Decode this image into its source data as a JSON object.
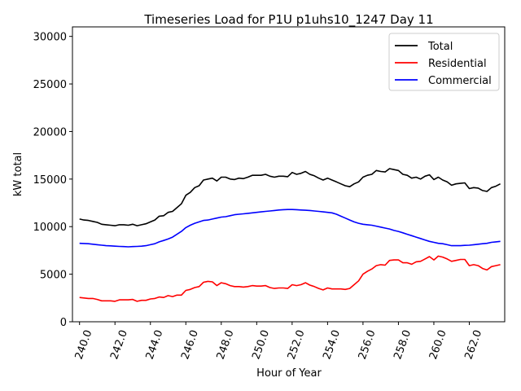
{
  "chart_data": {
    "type": "line",
    "title": "Timeseries Load for P1U p1uhs10_1247  Day 11",
    "xlabel": "Hour of Year",
    "ylabel": "kW total",
    "xlim": [
      239.6,
      264.0
    ],
    "ylim": [
      0,
      31000
    ],
    "xticks": [
      240.0,
      242.0,
      244.0,
      246.0,
      248.0,
      250.0,
      252.0,
      254.0,
      256.0,
      258.0,
      260.0,
      262.0
    ],
    "xtick_labels": [
      "240.0",
      "242.0",
      "244.0",
      "246.0",
      "248.0",
      "250.0",
      "252.0",
      "254.0",
      "256.0",
      "258.0",
      "260.0",
      "262.0"
    ],
    "yticks": [
      0,
      5000,
      10000,
      15000,
      20000,
      25000,
      30000
    ],
    "ytick_labels": [
      "0",
      "5000",
      "10000",
      "15000",
      "20000",
      "25000",
      "30000"
    ],
    "legend_position": "top-right",
    "x": [
      240.0,
      240.25,
      240.5,
      240.75,
      241.0,
      241.25,
      241.5,
      241.75,
      242.0,
      242.25,
      242.5,
      242.75,
      243.0,
      243.25,
      243.5,
      243.75,
      244.0,
      244.25,
      244.5,
      244.75,
      245.0,
      245.25,
      245.5,
      245.75,
      246.0,
      246.25,
      246.5,
      246.75,
      247.0,
      247.25,
      247.5,
      247.75,
      248.0,
      248.25,
      248.5,
      248.75,
      249.0,
      249.25,
      249.5,
      249.75,
      250.0,
      250.25,
      250.5,
      250.75,
      251.0,
      251.25,
      251.5,
      251.75,
      252.0,
      252.25,
      252.5,
      252.75,
      253.0,
      253.25,
      253.5,
      253.75,
      254.0,
      254.25,
      254.5,
      254.75,
      255.0,
      255.25,
      255.5,
      255.75,
      256.0,
      256.25,
      256.5,
      256.75,
      257.0,
      257.25,
      257.5,
      257.75,
      258.0,
      258.25,
      258.5,
      258.75,
      259.0,
      259.25,
      259.5,
      259.75,
      260.0,
      260.25,
      260.5,
      260.75,
      261.0,
      261.25,
      261.5,
      261.75,
      262.0,
      262.25,
      262.5,
      262.75,
      263.0,
      263.25,
      263.5,
      263.75
    ],
    "series": [
      {
        "name": "Total",
        "color": "#000000",
        "values": [
          10800,
          10700,
          10650,
          10550,
          10450,
          10250,
          10200,
          10150,
          10100,
          10200,
          10200,
          10150,
          10250,
          10100,
          10200,
          10300,
          10500,
          10700,
          11100,
          11150,
          11500,
          11600,
          12000,
          12400,
          13300,
          13600,
          14100,
          14300,
          14900,
          15000,
          15100,
          14800,
          15200,
          15200,
          15000,
          14950,
          15100,
          15050,
          15200,
          15400,
          15400,
          15400,
          15500,
          15300,
          15200,
          15300,
          15300,
          15250,
          15700,
          15500,
          15600,
          15800,
          15500,
          15350,
          15100,
          14900,
          15100,
          14900,
          14700,
          14500,
          14300,
          14200,
          14500,
          14700,
          15200,
          15400,
          15500,
          15900,
          15800,
          15750,
          16100,
          16000,
          15900,
          15500,
          15400,
          15100,
          15200,
          15000,
          15300,
          15450,
          14950,
          15200,
          14900,
          14700,
          14350,
          14500,
          14550,
          14600,
          14000,
          14100,
          14050,
          13800,
          13700,
          14100,
          14250,
          14500
        ]
      },
      {
        "name": "Residential",
        "color": "#ff0000",
        "values": [
          2550,
          2500,
          2450,
          2450,
          2350,
          2200,
          2200,
          2200,
          2150,
          2300,
          2300,
          2300,
          2350,
          2150,
          2250,
          2250,
          2400,
          2450,
          2600,
          2550,
          2750,
          2650,
          2800,
          2800,
          3300,
          3400,
          3600,
          3700,
          4150,
          4250,
          4200,
          3800,
          4100,
          4000,
          3800,
          3700,
          3700,
          3650,
          3700,
          3800,
          3750,
          3750,
          3800,
          3600,
          3500,
          3550,
          3550,
          3500,
          3900,
          3800,
          3900,
          4100,
          3850,
          3700,
          3500,
          3350,
          3550,
          3450,
          3450,
          3450,
          3400,
          3500,
          3900,
          4300,
          5000,
          5300,
          5550,
          5900,
          6000,
          5950,
          6450,
          6500,
          6500,
          6200,
          6200,
          6050,
          6300,
          6350,
          6600,
          6850,
          6500,
          6900,
          6800,
          6600,
          6350,
          6450,
          6550,
          6550,
          5900,
          6000,
          5900,
          5600,
          5450,
          5800,
          5900,
          6000
        ]
      },
      {
        "name": "Commercial",
        "color": "#0000ff",
        "values": [
          8250,
          8230,
          8200,
          8150,
          8100,
          8050,
          8000,
          7980,
          7950,
          7920,
          7900,
          7880,
          7900,
          7920,
          7950,
          8000,
          8100,
          8200,
          8400,
          8550,
          8700,
          8900,
          9200,
          9500,
          9900,
          10150,
          10350,
          10500,
          10650,
          10700,
          10800,
          10900,
          11000,
          11050,
          11150,
          11250,
          11300,
          11350,
          11400,
          11450,
          11500,
          11550,
          11600,
          11650,
          11700,
          11750,
          11780,
          11800,
          11800,
          11780,
          11750,
          11720,
          11700,
          11650,
          11600,
          11550,
          11500,
          11450,
          11300,
          11100,
          10900,
          10700,
          10500,
          10350,
          10250,
          10200,
          10150,
          10050,
          9950,
          9850,
          9750,
          9600,
          9500,
          9350,
          9200,
          9050,
          8900,
          8750,
          8600,
          8450,
          8350,
          8250,
          8200,
          8100,
          8000,
          8000,
          8000,
          8030,
          8050,
          8100,
          8150,
          8200,
          8250,
          8350,
          8400,
          8450
        ]
      }
    ]
  }
}
